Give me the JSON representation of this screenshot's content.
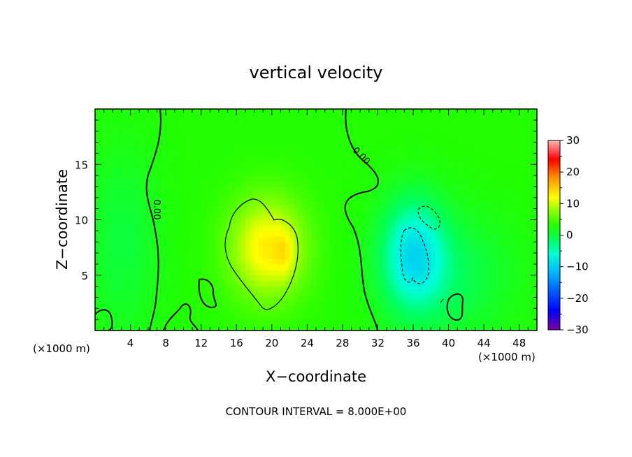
{
  "chart_data": {
    "type": "heatmap",
    "title": "vertical velocity",
    "xlabel": "X−coordinate",
    "ylabel": "Z−coordinate",
    "x_unit_label": "(×1000 m)",
    "x_unit_label_right": "(×1000 m)",
    "xlim": [
      0,
      50
    ],
    "ylim": [
      0,
      20
    ],
    "xticks": [
      4,
      8,
      12,
      16,
      20,
      24,
      28,
      32,
      36,
      40,
      44,
      48
    ],
    "yticks": [
      5,
      10,
      15
    ],
    "colorbar": {
      "min": -30,
      "max": 30,
      "ticks": [
        30,
        20,
        10,
        0,
        -10,
        -20,
        -30
      ],
      "tick_labels": [
        "30",
        "20",
        "10",
        "0",
        "−10",
        "−20",
        "−30"
      ],
      "colors": [
        "#8000a0",
        "#0000ff",
        "#00b4ff",
        "#00ffd8",
        "#00ff60",
        "#22ff00",
        "#8cff00",
        "#ffff00",
        "#ff9600",
        "#ff0000",
        "#ffb4b4"
      ]
    },
    "background_value": 3,
    "features": [
      {
        "kind": "updraft",
        "x": 19.5,
        "z": 7.5,
        "sx": 3.0,
        "sz": 3.2,
        "w": 10
      },
      {
        "kind": "updraft",
        "x": 21.5,
        "z": 7.0,
        "sx": 0.8,
        "sz": 1.5,
        "w": 3
      },
      {
        "kind": "downdraft",
        "x": 36,
        "z": 7,
        "sx": 2.5,
        "sz": 3.5,
        "w": -10
      },
      {
        "kind": "downdraft",
        "x": 40,
        "z": 5,
        "sx": 5,
        "sz": 4,
        "w": -4
      },
      {
        "kind": "weak_downdraft",
        "x": 3,
        "z": 8,
        "sx": 3,
        "sz": 6,
        "w": -3
      }
    ],
    "contour_labels": [
      "0.00",
      "0.00"
    ],
    "contour_interval": "CONTOUR INTERVAL = 8.000E+00"
  }
}
